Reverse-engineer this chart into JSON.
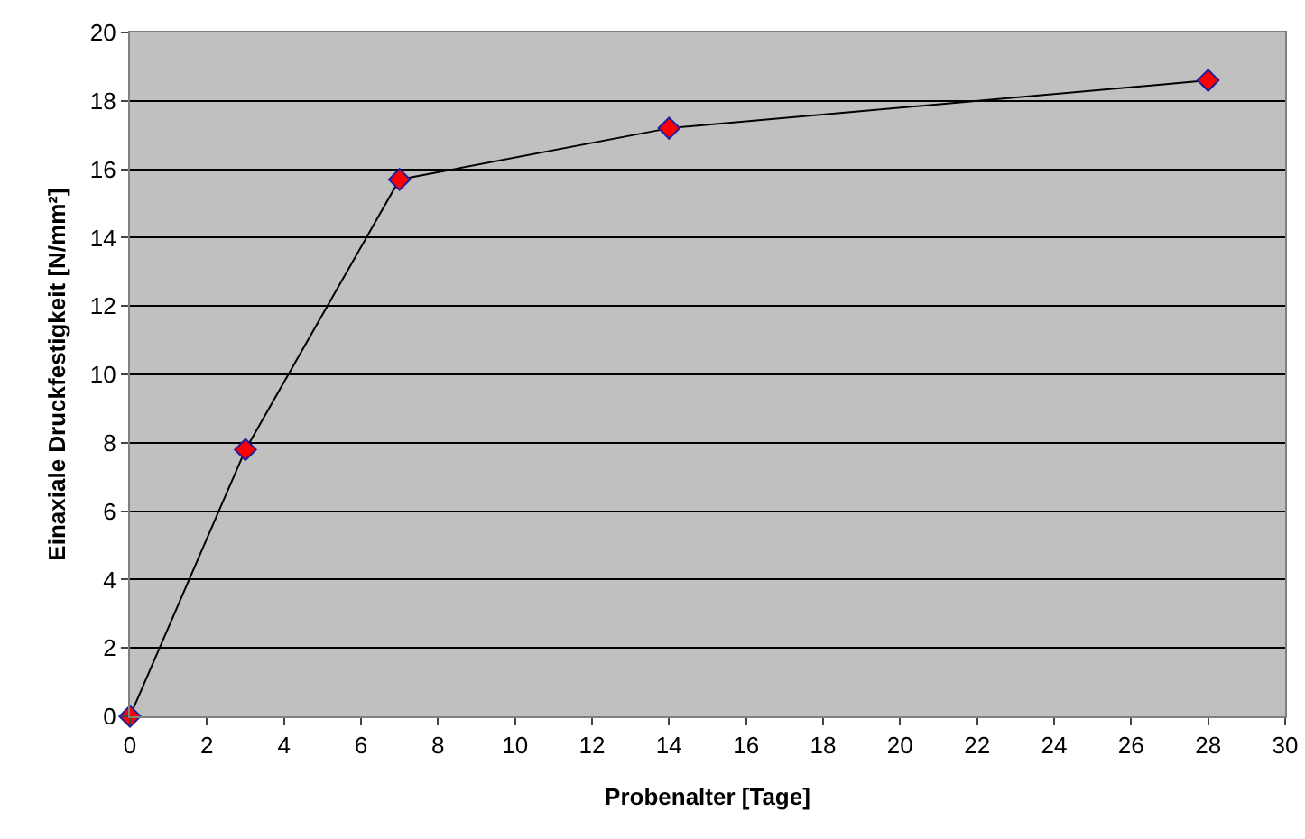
{
  "chart_data": {
    "type": "line",
    "xlabel": "Probenalter [Tage]",
    "ylabel": "Einaxiale Druckfestigkeit [N/mm²]",
    "x": [
      0,
      3,
      7,
      14,
      28
    ],
    "series": [
      {
        "color": "#ff0000",
        "values": [
          0,
          7.8,
          15.7,
          17.2,
          18.6
        ]
      }
    ],
    "xlim": [
      0,
      30
    ],
    "xticks": [
      0,
      2,
      4,
      6,
      8,
      10,
      12,
      14,
      16,
      18,
      20,
      22,
      24,
      26,
      28,
      30
    ],
    "ylim": [
      0,
      20
    ],
    "yticks": [
      0,
      2,
      4,
      6,
      8,
      10,
      12,
      14,
      16,
      18,
      20
    ],
    "grid": "y",
    "marker": "diamond",
    "line_style": "solid"
  }
}
